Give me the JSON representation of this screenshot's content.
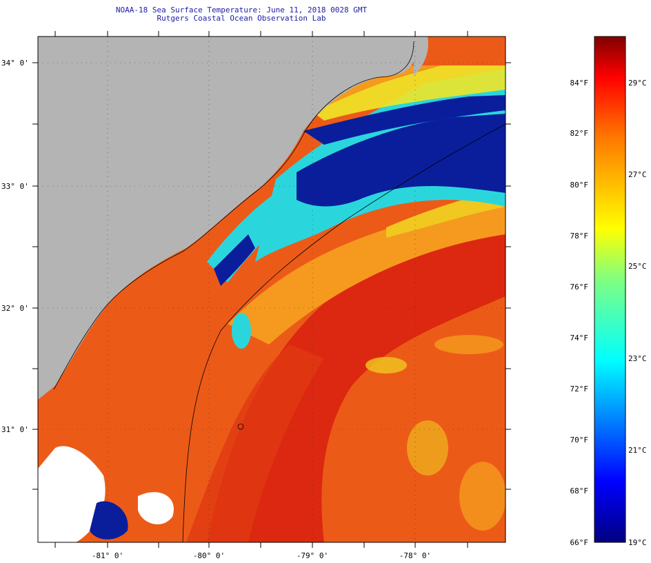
{
  "header": {
    "title_line1": "NOAA-18 Sea Surface Temperature:  June 11, 2018 0028 GMT",
    "title_line2": "Rutgers Coastal Ocean Observation Lab"
  },
  "map": {
    "lat_labels": [
      "34° 0'",
      "33° 0'",
      "32° 0'",
      "31° 0'"
    ],
    "lon_labels": [
      "-81° 0'",
      "-80° 0'",
      "-79° 0'",
      "-78° 0'"
    ],
    "colors": {
      "land": "#b4b4b4",
      "warm_core": "#dc2810",
      "warm": "#ec5a18",
      "mid": "#f59a1e",
      "yellow": "#f0e628",
      "cyan": "#2ad6dc",
      "cold": "#0a1e9c",
      "cloud": "#ffffff"
    }
  },
  "legend": {
    "f_labels": [
      "84°F",
      "82°F",
      "80°F",
      "78°F",
      "76°F",
      "74°F",
      "72°F",
      "70°F",
      "68°F",
      "66°F"
    ],
    "c_labels": [
      "29°C",
      "27°C",
      "25°C",
      "23°C",
      "21°C",
      "19°C"
    ]
  }
}
